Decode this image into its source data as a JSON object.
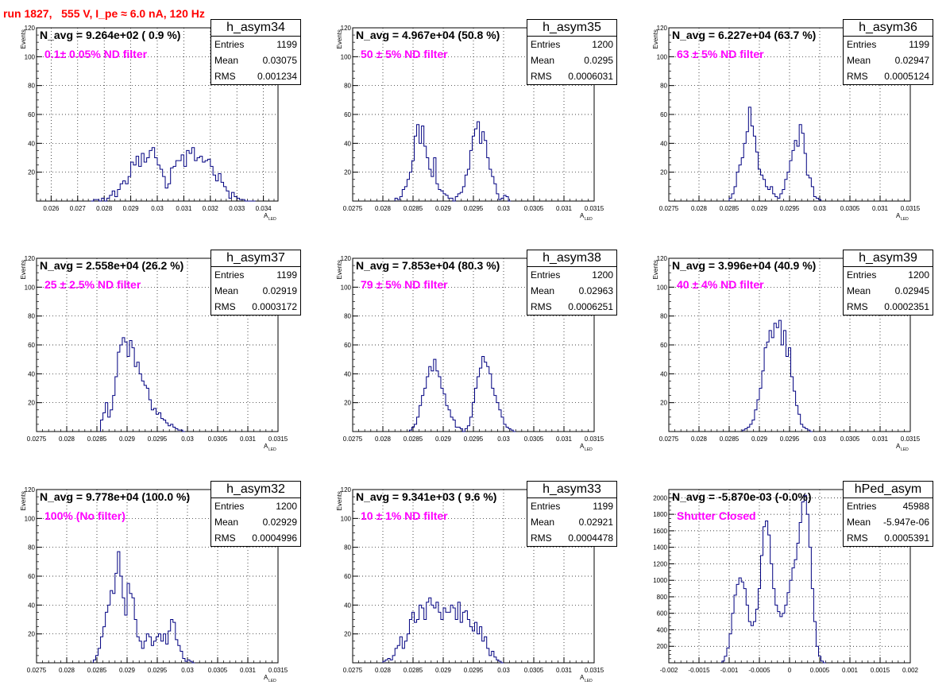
{
  "title": "run 1827,   555 V, I_pe ≈ 6.0 nA, 120 Hz",
  "colors": {
    "title": "#ff0000",
    "annotation": "#ff00ff",
    "hist": "#000080",
    "grid": "#000000"
  },
  "chart_data": [
    {
      "type": "histogram",
      "stats": {
        "name": "h_asym34",
        "entries": "1199",
        "mean": "0.03075",
        "rms": "0.001234"
      },
      "navg": "N_avg = 9.264e+02 ( 0.9 %)",
      "annotation": "0.1± 0.05% ND filter",
      "ylabel": "Events",
      "xlabel": "A",
      "xlabel_sub": "LED",
      "xlim": [
        0.02545,
        0.03455
      ],
      "ylim": [
        0,
        120
      ],
      "xticks": [
        0.026,
        0.027,
        0.028,
        0.029,
        0.03,
        0.031,
        0.032,
        0.033,
        0.034
      ],
      "xtick_labels": [
        "0.026",
        "0.027",
        "0.028",
        "0.029",
        "0.03",
        "0.031",
        "0.032",
        "0.033",
        "0.034"
      ],
      "yticks": [
        0,
        20,
        40,
        60,
        80,
        100,
        120
      ],
      "ytick_labels": [
        "",
        "20",
        "40",
        "60",
        "80",
        "100",
        "120"
      ],
      "bin_start": 0.0275,
      "bin_width": 0.0001,
      "counts": [
        0,
        1,
        1,
        0,
        2,
        0,
        2,
        4,
        7,
        3,
        8,
        12,
        14,
        12,
        17,
        27,
        25,
        31,
        24,
        33,
        27,
        30,
        35,
        37,
        30,
        25,
        22,
        17,
        9,
        12,
        23,
        24,
        28,
        28,
        32,
        24,
        35,
        33,
        37,
        28,
        30,
        31,
        27,
        28,
        29,
        24,
        18,
        14,
        19,
        13,
        10,
        7,
        2,
        6,
        3,
        2,
        1,
        1,
        0,
        0,
        0,
        0
      ]
    },
    {
      "type": "histogram",
      "stats": {
        "name": "h_asym35",
        "entries": "1200",
        "mean": "0.0295",
        "rms": "0.0006031"
      },
      "navg": "N_avg = 4.967e+04 (50.8 %)",
      "annotation": "50 ± 5% ND filter",
      "ylabel": "Events",
      "xlabel": "A",
      "xlabel_sub": "LED",
      "xlim": [
        0.0275,
        0.0315
      ],
      "ylim": [
        0,
        120
      ],
      "xticks": [
        0.0275,
        0.028,
        0.0285,
        0.029,
        0.0295,
        0.03,
        0.0305,
        0.031,
        0.0315
      ],
      "xtick_labels": [
        "0.0275",
        "0.028",
        "0.0285",
        "0.029",
        "0.0295",
        "0.03",
        "0.0305",
        "0.031",
        "0.0315"
      ],
      "yticks": [
        0,
        20,
        40,
        60,
        80,
        100,
        120
      ],
      "ytick_labels": [
        "",
        "20",
        "40",
        "60",
        "80",
        "100",
        "120"
      ],
      "bin_start": 0.0282,
      "bin_width": 4e-05,
      "counts": [
        2,
        1,
        3,
        8,
        10,
        15,
        20,
        28,
        45,
        53,
        40,
        52,
        38,
        30,
        22,
        17,
        30,
        12,
        8,
        7,
        5,
        4,
        2,
        2,
        0,
        3,
        5,
        6,
        10,
        18,
        22,
        35,
        45,
        50,
        55,
        40,
        48,
        42,
        30,
        22,
        17,
        12,
        5,
        1,
        2,
        4,
        3,
        0
      ]
    },
    {
      "type": "histogram",
      "stats": {
        "name": "h_asym36",
        "entries": "1199",
        "mean": "0.02947",
        "rms": "0.0005124"
      },
      "navg": "N_avg = 6.227e+04 (63.7 %)",
      "annotation": "63 ± 5% ND filter",
      "ylabel": "Events",
      "xlabel": "A",
      "xlabel_sub": "LED",
      "xlim": [
        0.0275,
        0.0315
      ],
      "ylim": [
        0,
        120
      ],
      "xticks": [
        0.0275,
        0.028,
        0.0285,
        0.029,
        0.0295,
        0.03,
        0.0305,
        0.031,
        0.0315
      ],
      "xtick_labels": [
        "0.0275",
        "0.028",
        "0.0285",
        "0.029",
        "0.0295",
        "0.03",
        "0.0305",
        "0.031",
        "0.0315"
      ],
      "yticks": [
        0,
        20,
        40,
        60,
        80,
        100,
        120
      ],
      "ytick_labels": [
        "",
        "20",
        "40",
        "60",
        "80",
        "100",
        "120"
      ],
      "bin_start": 0.0285,
      "bin_width": 4e-05,
      "counts": [
        2,
        5,
        10,
        20,
        25,
        30,
        40,
        48,
        65,
        52,
        45,
        34,
        22,
        18,
        15,
        10,
        8,
        10,
        5,
        3,
        2,
        5,
        8,
        15,
        20,
        28,
        35,
        42,
        38,
        53,
        47,
        33,
        18,
        16,
        10,
        3,
        2,
        1
      ]
    },
    {
      "type": "histogram",
      "stats": {
        "name": "h_asym37",
        "entries": "1199",
        "mean": "0.02919",
        "rms": "0.0003172"
      },
      "navg": "N_avg = 2.558e+04 (26.2 %)",
      "annotation": "25 ± 2.5% ND filter",
      "ylabel": "Events",
      "xlabel": "A",
      "xlabel_sub": "LED",
      "xlim": [
        0.0275,
        0.0315
      ],
      "ylim": [
        0,
        120
      ],
      "xticks": [
        0.0275,
        0.028,
        0.0285,
        0.029,
        0.0295,
        0.03,
        0.0305,
        0.031,
        0.0315
      ],
      "xtick_labels": [
        "0.0275",
        "0.028",
        "0.0285",
        "0.029",
        "0.0295",
        "0.03",
        "0.0305",
        "0.031",
        "0.0315"
      ],
      "yticks": [
        0,
        20,
        40,
        60,
        80,
        100,
        120
      ],
      "ytick_labels": [
        "",
        "20",
        "40",
        "60",
        "80",
        "100",
        "120"
      ],
      "bin_start": 0.02856,
      "bin_width": 4e-05,
      "counts": [
        8,
        13,
        20,
        10,
        15,
        25,
        38,
        55,
        60,
        65,
        62,
        52,
        63,
        58,
        45,
        48,
        40,
        35,
        32,
        30,
        22,
        15,
        16,
        12,
        13,
        9,
        8,
        6,
        4,
        5,
        3,
        2,
        1,
        1,
        0
      ]
    },
    {
      "type": "histogram",
      "stats": {
        "name": "h_asym38",
        "entries": "1200",
        "mean": "0.02963",
        "rms": "0.0006251"
      },
      "navg": "N_avg = 7.853e+04 (80.3 %)",
      "annotation": "79 ± 5% ND filter",
      "ylabel": "Events",
      "xlabel": "A",
      "xlabel_sub": "LED",
      "xlim": [
        0.0275,
        0.0315
      ],
      "ylim": [
        0,
        120
      ],
      "xticks": [
        0.0275,
        0.028,
        0.0285,
        0.029,
        0.0295,
        0.03,
        0.0305,
        0.031,
        0.0315
      ],
      "xtick_labels": [
        "0.0275",
        "0.028",
        "0.0285",
        "0.029",
        "0.0295",
        "0.03",
        "0.0305",
        "0.031",
        "0.0315"
      ],
      "yticks": [
        0,
        20,
        40,
        60,
        80,
        100,
        120
      ],
      "ytick_labels": [
        "",
        "20",
        "40",
        "60",
        "80",
        "100",
        "120"
      ],
      "bin_start": 0.02844,
      "bin_width": 4e-05,
      "counts": [
        1,
        3,
        5,
        10,
        18,
        25,
        30,
        38,
        45,
        42,
        50,
        42,
        38,
        30,
        26,
        18,
        15,
        10,
        8,
        3,
        3,
        2,
        0,
        2,
        4,
        10,
        20,
        30,
        38,
        44,
        52,
        48,
        45,
        40,
        30,
        25,
        20,
        15,
        10,
        5,
        3,
        2,
        1,
        0
      ]
    },
    {
      "type": "histogram",
      "stats": {
        "name": "h_asym39",
        "entries": "1200",
        "mean": "0.02945",
        "rms": "0.0002351"
      },
      "navg": "N_avg = 3.996e+04 (40.9 %)",
      "annotation": "40 ± 4% ND filter",
      "ylabel": "Events",
      "xlabel": "A",
      "xlabel_sub": "LED",
      "xlim": [
        0.0275,
        0.0315
      ],
      "ylim": [
        0,
        120
      ],
      "xticks": [
        0.0275,
        0.028,
        0.0285,
        0.029,
        0.0295,
        0.03,
        0.0305,
        0.031,
        0.0315
      ],
      "xtick_labels": [
        "0.0275",
        "0.028",
        "0.0285",
        "0.029",
        "0.0295",
        "0.03",
        "0.0305",
        "0.031",
        "0.0315"
      ],
      "yticks": [
        0,
        20,
        40,
        60,
        80,
        100,
        120
      ],
      "ytick_labels": [
        "",
        "20",
        "40",
        "60",
        "80",
        "100",
        "120"
      ],
      "bin_start": 0.02872,
      "bin_width": 4e-05,
      "counts": [
        1,
        2,
        3,
        5,
        8,
        15,
        22,
        30,
        42,
        58,
        62,
        70,
        65,
        75,
        72,
        77,
        60,
        70,
        52,
        58,
        38,
        28,
        18,
        12,
        5,
        3,
        2,
        1,
        0
      ]
    },
    {
      "type": "histogram",
      "stats": {
        "name": "h_asym32",
        "entries": "1200",
        "mean": "0.02929",
        "rms": "0.0004996"
      },
      "navg": "N_avg = 9.778e+04 (100.0 %)",
      "annotation": "100% (No filter)",
      "ylabel": "Events",
      "xlabel": "A",
      "xlabel_sub": "LED",
      "xlim": [
        0.0275,
        0.0315
      ],
      "ylim": [
        0,
        120
      ],
      "xticks": [
        0.0275,
        0.028,
        0.0285,
        0.029,
        0.0295,
        0.03,
        0.0305,
        0.031,
        0.0315
      ],
      "xtick_labels": [
        "0.0275",
        "0.028",
        "0.0285",
        "0.029",
        "0.0295",
        "0.03",
        "0.0305",
        "0.031",
        "0.0315"
      ],
      "yticks": [
        0,
        20,
        40,
        60,
        80,
        100,
        120
      ],
      "ytick_labels": [
        "",
        "20",
        "40",
        "60",
        "80",
        "100",
        "120"
      ],
      "bin_start": 0.02844,
      "bin_width": 4e-05,
      "counts": [
        2,
        5,
        10,
        18,
        25,
        35,
        40,
        50,
        48,
        62,
        77,
        60,
        45,
        33,
        55,
        48,
        45,
        30,
        18,
        15,
        10,
        15,
        20,
        18,
        12,
        15,
        18,
        20,
        15,
        20,
        13,
        22,
        30,
        28,
        16,
        12,
        8,
        3,
        1,
        2,
        1,
        0
      ]
    },
    {
      "type": "histogram",
      "stats": {
        "name": "h_asym33",
        "entries": "1199",
        "mean": "0.02921",
        "rms": "0.0004478"
      },
      "navg": "N_avg = 9.341e+03 ( 9.6 %)",
      "annotation": "10 ± 1% ND filter",
      "ylabel": "Events",
      "xlabel": "A",
      "xlabel_sub": "LED",
      "xlim": [
        0.0275,
        0.0315
      ],
      "ylim": [
        0,
        120
      ],
      "xticks": [
        0.0275,
        0.028,
        0.0285,
        0.029,
        0.0295,
        0.03,
        0.0305,
        0.031,
        0.0315
      ],
      "xtick_labels": [
        "0.0275",
        "0.028",
        "0.0285",
        "0.029",
        "0.0295",
        "0.03",
        "0.0305",
        "0.031",
        "0.0315"
      ],
      "yticks": [
        0,
        20,
        40,
        60,
        80,
        100,
        120
      ],
      "ytick_labels": [
        "",
        "20",
        "40",
        "60",
        "80",
        "100",
        "120"
      ],
      "bin_start": 0.028,
      "bin_width": 4e-05,
      "counts": [
        1,
        2,
        3,
        2,
        5,
        10,
        12,
        18,
        10,
        15,
        20,
        30,
        35,
        28,
        30,
        40,
        38,
        30,
        42,
        45,
        40,
        38,
        42,
        35,
        30,
        38,
        35,
        35,
        40,
        38,
        30,
        42,
        28,
        35,
        36,
        30,
        25,
        22,
        28,
        20,
        25,
        15,
        18,
        10,
        5,
        8,
        4,
        2,
        1,
        0
      ]
    },
    {
      "type": "histogram",
      "stats": {
        "name": "hPed_asym",
        "entries": "45988",
        "mean": "-5.947e-06",
        "rms": "0.0005391"
      },
      "navg": "N_avg = -5.870e-03 (-0.0%)",
      "annotation": "Shutter Closed",
      "ylabel": "",
      "xlabel": "",
      "xlabel_sub": "",
      "xlim": [
        -0.002,
        0.002
      ],
      "ylim": [
        0,
        2100
      ],
      "xticks": [
        -0.002,
        -0.0015,
        -0.001,
        -0.0005,
        0,
        0.0005,
        0.001,
        0.0015,
        0.002
      ],
      "xtick_labels": [
        "-0.002",
        "-0.0015",
        "-0.001",
        "-0.0005",
        "0",
        "0.0005",
        "0.001",
        "0.0015",
        "0.002"
      ],
      "yticks": [
        0,
        200,
        400,
        600,
        800,
        1000,
        1200,
        1400,
        1600,
        1800,
        2000
      ],
      "ytick_labels": [
        "",
        "200",
        "400",
        "600",
        "800",
        "1000",
        "1200",
        "1400",
        "1600",
        "1800",
        "2000"
      ],
      "bin_start": -0.00112,
      "bin_width": 4e-05,
      "counts": [
        20,
        80,
        180,
        350,
        600,
        820,
        950,
        1030,
        980,
        900,
        700,
        500,
        450,
        500,
        650,
        900,
        1300,
        1650,
        1720,
        1550,
        1200,
        900,
        700,
        620,
        560,
        600,
        700,
        850,
        1000,
        1150,
        1250,
        1450,
        1700,
        1950,
        2030,
        1800,
        1400,
        900,
        500,
        200,
        80,
        20,
        0
      ]
    }
  ]
}
